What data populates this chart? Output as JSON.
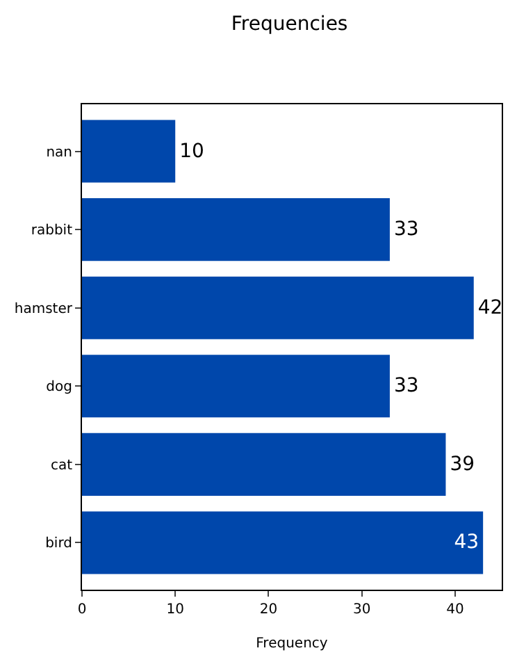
{
  "chart_data": {
    "type": "bar",
    "orientation": "horizontal",
    "title": "Frequencies",
    "xlabel": "Frequency",
    "categories": [
      "nan",
      "rabbit",
      "hamster",
      "dog",
      "cat",
      "bird"
    ],
    "values": [
      10,
      33,
      42,
      33,
      39,
      43
    ],
    "color": "#0047ab",
    "xlim": [
      0,
      45
    ],
    "xticks": [
      0,
      10,
      20,
      30,
      40
    ],
    "data_labels": true
  }
}
